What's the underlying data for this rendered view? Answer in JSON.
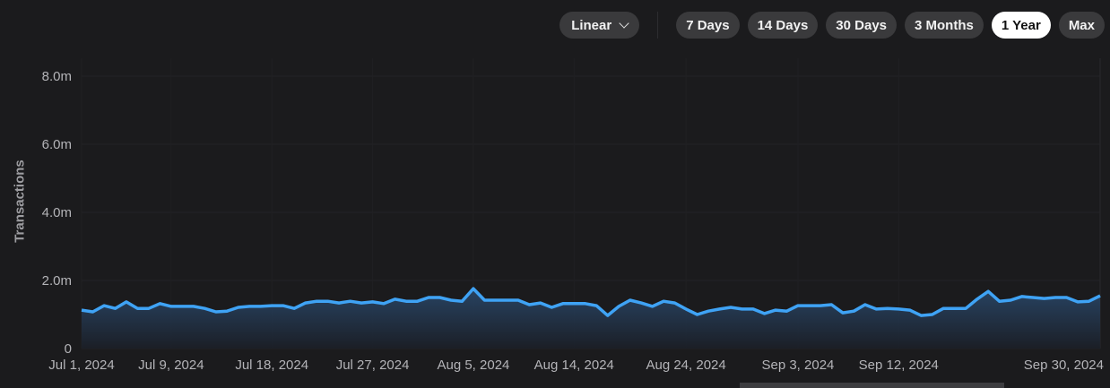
{
  "toolbar": {
    "scale": {
      "label": "Linear",
      "icon": "chevron-down-icon"
    },
    "ranges": [
      "7 Days",
      "14 Days",
      "30 Days",
      "3 Months",
      "1 Year",
      "Max"
    ],
    "active_range": "1 Year"
  },
  "colors": {
    "line": "#3fa3f5",
    "background": "#1b1b1d",
    "active_button": "#ffffff",
    "button": "#3a3a3c"
  },
  "chart_data": {
    "type": "area",
    "ylabel": "Transactions",
    "ylim": [
      0,
      8000000
    ],
    "yticks": [
      {
        "value": 0,
        "label": "0"
      },
      {
        "value": 2000000,
        "label": "2.0m"
      },
      {
        "value": 4000000,
        "label": "4.0m"
      },
      {
        "value": 6000000,
        "label": "6.0m"
      },
      {
        "value": 8000000,
        "label": "8.0m"
      }
    ],
    "xlim": [
      "2024-07-01",
      "2024-09-30"
    ],
    "xticks": [
      {
        "date": "2024-07-01",
        "label": "Jul 1, 2024"
      },
      {
        "date": "2024-07-09",
        "label": "Jul 9, 2024"
      },
      {
        "date": "2024-07-18",
        "label": "Jul 18, 2024"
      },
      {
        "date": "2024-07-27",
        "label": "Jul 27, 2024"
      },
      {
        "date": "2024-08-05",
        "label": "Aug 5, 2024"
      },
      {
        "date": "2024-08-14",
        "label": "Aug 14, 2024"
      },
      {
        "date": "2024-08-24",
        "label": "Aug 24, 2024"
      },
      {
        "date": "2024-09-03",
        "label": "Sep 3, 2024"
      },
      {
        "date": "2024-09-12",
        "label": "Sep 12, 2024"
      },
      {
        "date": "2024-09-30",
        "label": "Sep 30, 2024"
      }
    ],
    "grid": true,
    "series": [
      {
        "start_date": "2024-07-01",
        "interval": "1 day",
        "values": [
          1130000,
          1080000,
          1260000,
          1180000,
          1370000,
          1180000,
          1180000,
          1320000,
          1240000,
          1240000,
          1240000,
          1180000,
          1080000,
          1100000,
          1210000,
          1240000,
          1240000,
          1260000,
          1260000,
          1180000,
          1340000,
          1390000,
          1390000,
          1340000,
          1390000,
          1340000,
          1370000,
          1320000,
          1450000,
          1390000,
          1390000,
          1500000,
          1500000,
          1420000,
          1390000,
          1760000,
          1420000,
          1420000,
          1420000,
          1420000,
          1290000,
          1340000,
          1210000,
          1320000,
          1320000,
          1320000,
          1260000,
          970000,
          1240000,
          1420000,
          1340000,
          1240000,
          1390000,
          1340000,
          1160000,
          1000000,
          1100000,
          1160000,
          1210000,
          1160000,
          1160000,
          1030000,
          1130000,
          1100000,
          1260000,
          1260000,
          1260000,
          1290000,
          1050000,
          1100000,
          1290000,
          1160000,
          1180000,
          1160000,
          1130000,
          970000,
          1000000,
          1180000,
          1180000,
          1180000,
          1450000,
          1680000,
          1390000,
          1420000,
          1530000,
          1500000,
          1470000,
          1500000,
          1500000,
          1370000,
          1390000,
          1550000
        ]
      }
    ]
  }
}
